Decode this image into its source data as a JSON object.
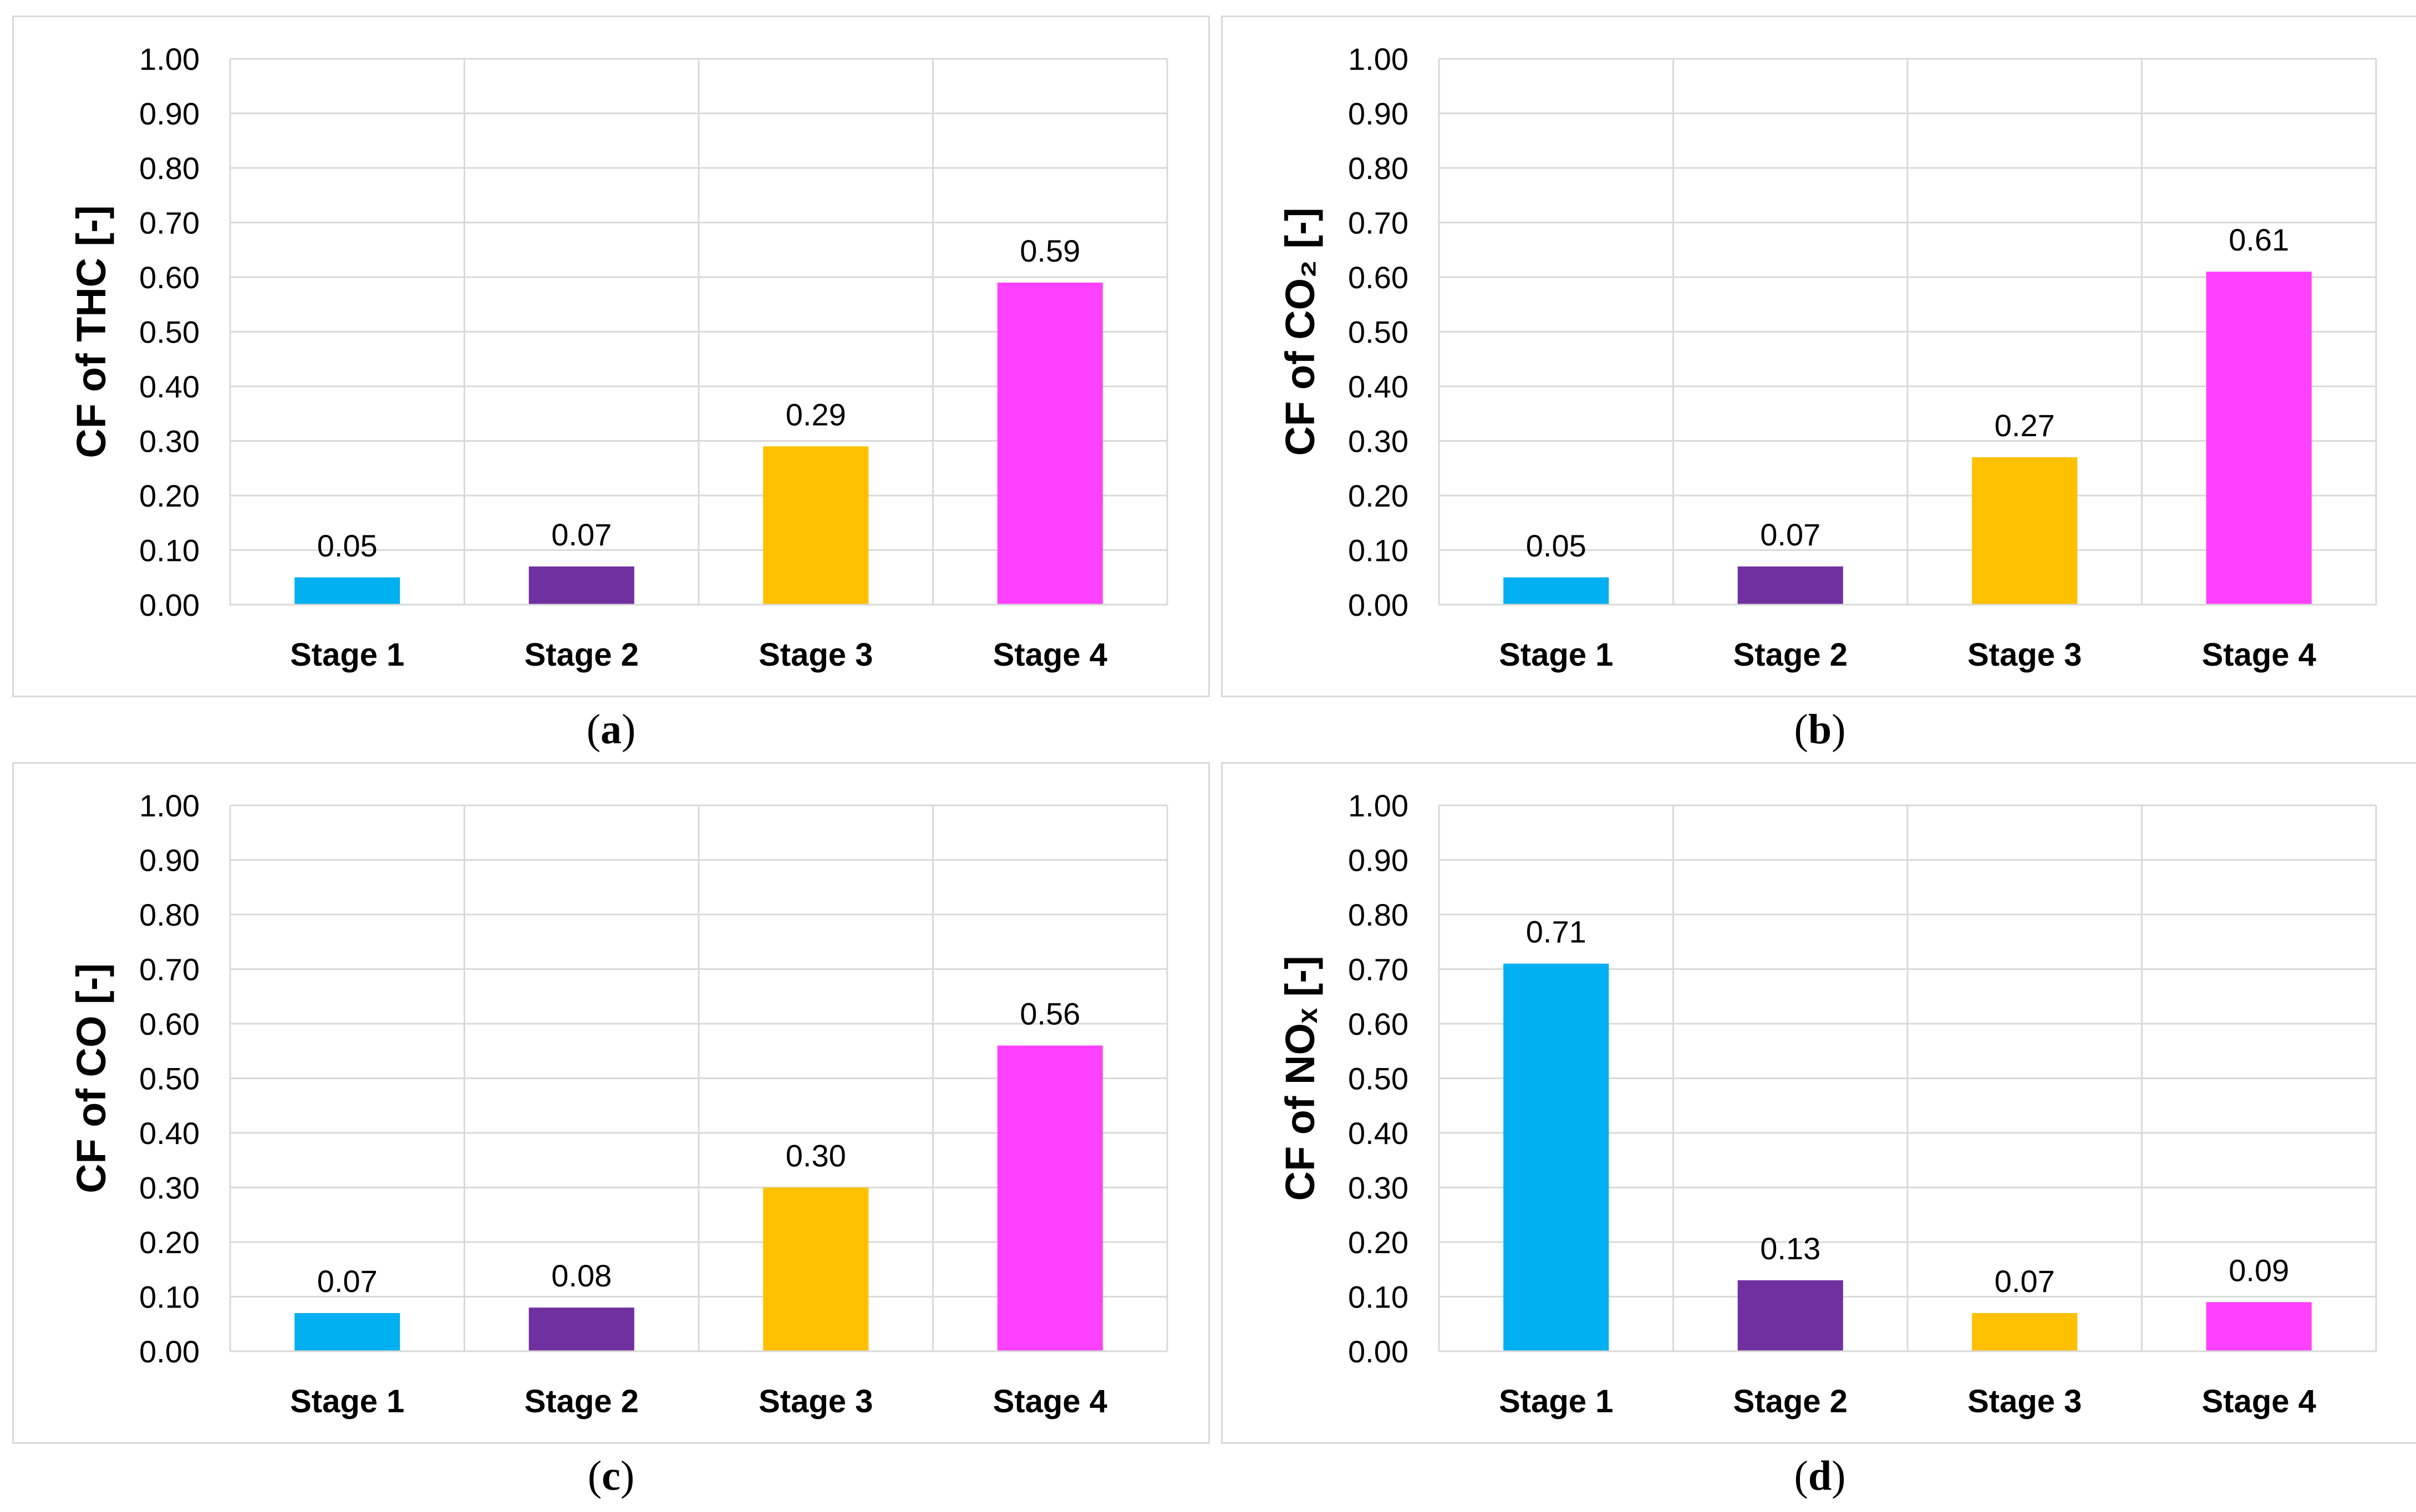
{
  "chart_data": [
    {
      "type": "bar",
      "panel_label": "a",
      "ylabel": "CF of THC [-]",
      "categories": [
        "Stage 1",
        "Stage 2",
        "Stage 3",
        "Stage 4"
      ],
      "values": [
        0.05,
        0.07,
        0.29,
        0.59
      ],
      "value_labels": [
        "0.05",
        "0.07",
        "0.29",
        "0.59"
      ],
      "ylim": [
        0,
        1.0
      ],
      "yticks": [
        "0.00",
        "0.10",
        "0.20",
        "0.30",
        "0.40",
        "0.50",
        "0.60",
        "0.70",
        "0.80",
        "0.90",
        "1.00"
      ],
      "grid": true,
      "colors": [
        "#00b0f0",
        "#7030a0",
        "#ffc000",
        "#ff40ff"
      ]
    },
    {
      "type": "bar",
      "panel_label": "b",
      "ylabel": "CF of CO₂ [-]",
      "categories": [
        "Stage 1",
        "Stage 2",
        "Stage 3",
        "Stage 4"
      ],
      "values": [
        0.05,
        0.07,
        0.27,
        0.61
      ],
      "value_labels": [
        "0.05",
        "0.07",
        "0.27",
        "0.61"
      ],
      "ylim": [
        0,
        1.0
      ],
      "yticks": [
        "0.00",
        "0.10",
        "0.20",
        "0.30",
        "0.40",
        "0.50",
        "0.60",
        "0.70",
        "0.80",
        "0.90",
        "1.00"
      ],
      "grid": true,
      "colors": [
        "#00b0f0",
        "#7030a0",
        "#ffc000",
        "#ff40ff"
      ]
    },
    {
      "type": "bar",
      "panel_label": "c",
      "ylabel": "CF of CO [-]",
      "categories": [
        "Stage 1",
        "Stage 2",
        "Stage 3",
        "Stage 4"
      ],
      "values": [
        0.07,
        0.08,
        0.3,
        0.56
      ],
      "value_labels": [
        "0.07",
        "0.08",
        "0.30",
        "0.56"
      ],
      "ylim": [
        0,
        1.0
      ],
      "yticks": [
        "0.00",
        "0.10",
        "0.20",
        "0.30",
        "0.40",
        "0.50",
        "0.60",
        "0.70",
        "0.80",
        "0.90",
        "1.00"
      ],
      "grid": true,
      "colors": [
        "#00b0f0",
        "#7030a0",
        "#ffc000",
        "#ff40ff"
      ]
    },
    {
      "type": "bar",
      "panel_label": "d",
      "ylabel": "CF of NOₓ [-]",
      "categories": [
        "Stage 1",
        "Stage 2",
        "Stage 3",
        "Stage 4"
      ],
      "values": [
        0.71,
        0.13,
        0.07,
        0.09
      ],
      "value_labels": [
        "0.71",
        "0.13",
        "0.07",
        "0.09"
      ],
      "ylim": [
        0,
        1.0
      ],
      "yticks": [
        "0.00",
        "0.10",
        "0.20",
        "0.30",
        "0.40",
        "0.50",
        "0.60",
        "0.70",
        "0.80",
        "0.90",
        "1.00"
      ],
      "grid": true,
      "colors": [
        "#00b0f0",
        "#7030a0",
        "#ffc000",
        "#ff40ff"
      ]
    }
  ]
}
